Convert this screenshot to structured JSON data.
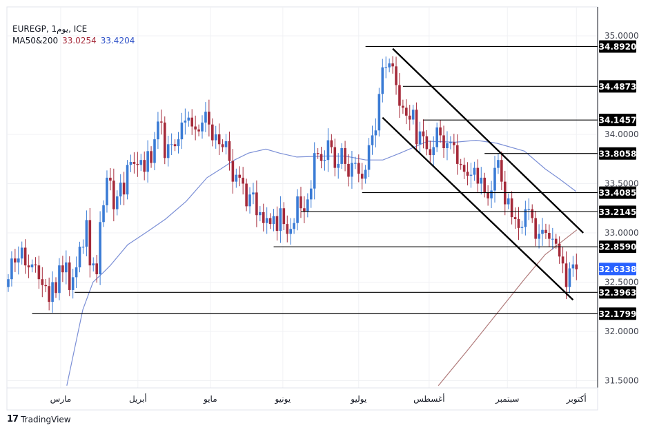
{
  "header": {
    "symbol_line": "EUREGP, 1يوم, ICE",
    "ma_label": "MA50&200",
    "ma_red_value": "33.0254",
    "ma_blue_value": "33.4204"
  },
  "brand": {
    "logo_text": "17",
    "name": "TradingView"
  },
  "colors": {
    "up": "#3a7bd5",
    "down": "#a52a3a",
    "ma_blue": "#7b8fd6",
    "ma_red": "#b07a7a",
    "last_price": "#2962ff",
    "level_box": "#000000"
  },
  "chart_data": {
    "type": "candlestick",
    "symbol": "EUREGP",
    "timeframe": "1 day",
    "ylim": [
      31.4,
      35.15
    ],
    "y_ticks": [
      "35.0000",
      "34.0000",
      "33.5000",
      "33.0000",
      "32.5000",
      "32.0000",
      "31.5000"
    ],
    "y_tick_values": [
      35.0,
      34.0,
      33.5,
      33.0,
      32.5,
      32.0,
      31.5
    ],
    "x_ticks": [
      {
        "label": "مارس",
        "index": 15.4
      },
      {
        "label": "أبريل",
        "index": 38.1
      },
      {
        "label": "مايو",
        "index": 59.4
      },
      {
        "label": "يونيو",
        "index": 80.7
      },
      {
        "label": "يوليو",
        "index": 103
      },
      {
        "label": "أغسطس",
        "index": 123.7
      },
      {
        "label": "سبتمبر",
        "index": 146.7
      },
      {
        "label": "أكتوبر",
        "index": 167
      }
    ],
    "first_open": 32.45,
    "closes": [
      32.53,
      32.74,
      32.7,
      32.74,
      32.85,
      32.67,
      32.65,
      32.68,
      32.67,
      32.53,
      32.47,
      32.46,
      32.3,
      32.5,
      32.39,
      32.67,
      32.6,
      32.7,
      32.42,
      32.55,
      32.65,
      32.86,
      32.86,
      33.13,
      32.67,
      32.69,
      32.58,
      33.11,
      33.28,
      33.56,
      33.53,
      33.24,
      33.37,
      33.51,
      33.39,
      33.69,
      33.72,
      33.7,
      33.69,
      33.74,
      33.62,
      33.83,
      33.71,
      33.95,
      34.13,
      34.12,
      33.76,
      33.9,
      33.9,
      33.88,
      33.95,
      34.12,
      34.14,
      34.17,
      34.08,
      34.05,
      34.03,
      34.12,
      34.23,
      34.1,
      33.94,
      34.0,
      33.9,
      33.87,
      33.93,
      33.73,
      33.52,
      33.59,
      33.56,
      33.5,
      33.27,
      33.39,
      33.41,
      33.18,
      33.21,
      33.1,
      33.15,
      33.09,
      33.17,
      33.02,
      33.25,
      33.09,
      32.99,
      33.04,
      33.1,
      33.37,
      33.25,
      33.22,
      33.34,
      33.45,
      33.81,
      33.8,
      33.73,
      33.74,
      33.94,
      33.87,
      33.66,
      33.7,
      33.86,
      33.7,
      33.57,
      33.71,
      33.71,
      33.6,
      33.55,
      33.64,
      33.89,
      33.99,
      34.04,
      34.41,
      34.68,
      34.68,
      34.72,
      34.69,
      34.5,
      34.29,
      34.27,
      34.19,
      34.15,
      34.25,
      33.9,
      34.03,
      33.98,
      33.85,
      33.79,
      33.87,
      34.07,
      33.99,
      33.86,
      33.91,
      33.92,
      33.89,
      33.7,
      33.69,
      33.62,
      33.58,
      33.59,
      33.66,
      33.5,
      33.56,
      33.41,
      33.35,
      33.43,
      33.66,
      33.74,
      33.52,
      33.29,
      33.35,
      33.16,
      33.14,
      33.05,
      33.06,
      33.24,
      33.24,
      33.15,
      32.94,
      32.99,
      33.03,
      33.0,
      32.94,
      32.94,
      32.89,
      32.76,
      32.69,
      32.45,
      32.64,
      32.68,
      32.63
    ],
    "ma_blue": [
      [
        17.2,
        31.45
      ],
      [
        21.9,
        32.22
      ],
      [
        24.9,
        32.5
      ],
      [
        28,
        32.6
      ],
      [
        30,
        32.67
      ],
      [
        35.1,
        32.88
      ],
      [
        41.2,
        33.02
      ],
      [
        46.2,
        33.14
      ],
      [
        52.3,
        33.32
      ],
      [
        58.4,
        33.56
      ],
      [
        62.5,
        33.65
      ],
      [
        66.5,
        33.74
      ],
      [
        70.6,
        33.81
      ],
      [
        75.7,
        33.85
      ],
      [
        79.7,
        33.81
      ],
      [
        84.8,
        33.77
      ],
      [
        92.9,
        33.78
      ],
      [
        99,
        33.78
      ],
      [
        105.1,
        33.74
      ],
      [
        110.1,
        33.74
      ],
      [
        115.2,
        33.81
      ],
      [
        123.3,
        33.93
      ],
      [
        131.4,
        33.92
      ],
      [
        137.5,
        33.94
      ],
      [
        143.6,
        33.91
      ],
      [
        151.7,
        33.83
      ],
      [
        157.8,
        33.65
      ],
      [
        161.9,
        33.55
      ],
      [
        166.9,
        33.42
      ]
    ],
    "ma_red": [
      [
        126.4,
        31.45
      ],
      [
        135.5,
        31.83
      ],
      [
        143.6,
        32.18
      ],
      [
        151.7,
        32.53
      ],
      [
        157.8,
        32.78
      ],
      [
        167.1,
        33.03
      ]
    ],
    "levels": [
      {
        "value": 34.892,
        "label": "34.8920",
        "from": 105
      },
      {
        "value": 34.4873,
        "label": "34.4873",
        "from": 116
      },
      {
        "value": 34.1457,
        "label": "34.1457",
        "from": 122
      },
      {
        "value": 33.8058,
        "label": "33.8058",
        "from": 140
      },
      {
        "value": 33.4085,
        "label": "33.4085",
        "from": 104
      },
      {
        "value": 33.2145,
        "label": "33.2145",
        "from": 86
      },
      {
        "value": 32.859,
        "label": "32.8590",
        "from": 78
      },
      {
        "value": 32.3963,
        "label": "32.3963",
        "from": 19.5
      },
      {
        "value": 32.1799,
        "label": "32.1799",
        "from": 7
      }
    ],
    "channel": [
      {
        "name": "upper",
        "from": [
          113,
          34.87
        ],
        "to": [
          169,
          33.0
        ]
      },
      {
        "name": "lower",
        "from": [
          110,
          34.17
        ],
        "to": [
          166,
          32.32
        ]
      }
    ],
    "last_price": {
      "value": 32.6338,
      "label": "32.6338"
    }
  }
}
